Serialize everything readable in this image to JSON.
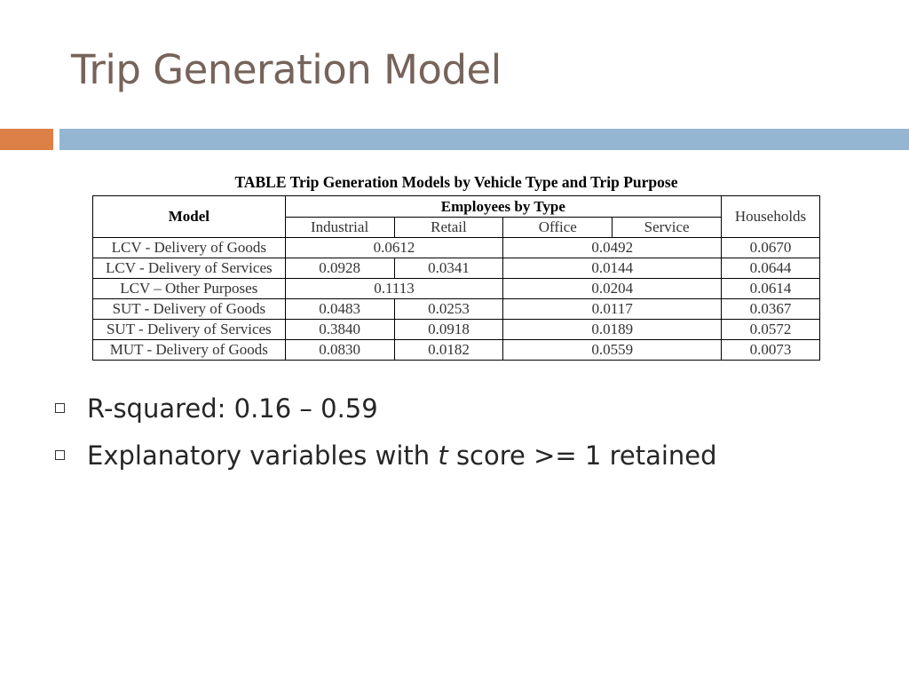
{
  "slide": {
    "title": "Trip Generation Model"
  },
  "table": {
    "caption": "TABLE  Trip Generation Models by Vehicle Type and Trip Purpose",
    "header": {
      "model": "Model",
      "employees_group": "Employees by Type",
      "households": "Households",
      "sub": [
        "Industrial",
        "Retail",
        "Office",
        "Service"
      ]
    },
    "rows": [
      {
        "model": "LCV - Delivery of Goods",
        "industrial": "0.0612",
        "office": "0.0492",
        "households": "0.0670"
      },
      {
        "model": "LCV - Delivery of Services",
        "industrial": "0.0928",
        "retail": "0.0341",
        "office": "0.0144",
        "households": "0.0644"
      },
      {
        "model": "LCV – Other Purposes",
        "industrial": "0.1113",
        "office": "0.0204",
        "households": "0.0614"
      },
      {
        "model": "SUT - Delivery of Goods",
        "industrial": "0.0483",
        "retail": "0.0253",
        "office": "0.0117",
        "households": "0.0367"
      },
      {
        "model": "SUT - Delivery of Services",
        "industrial": "0.3840",
        "retail": "0.0918",
        "office": "0.0189",
        "households": "0.0572"
      },
      {
        "model": "MUT - Delivery of Goods",
        "industrial": "0.0830",
        "retail": "0.0182",
        "office": "0.0559",
        "households": "0.0073"
      }
    ]
  },
  "bullets": [
    {
      "text": "R-squared: 0.16 – 0.59"
    },
    {
      "pre": "Explanatory variables with ",
      "italic": "t",
      "post": " score >= 1 retained"
    }
  ]
}
